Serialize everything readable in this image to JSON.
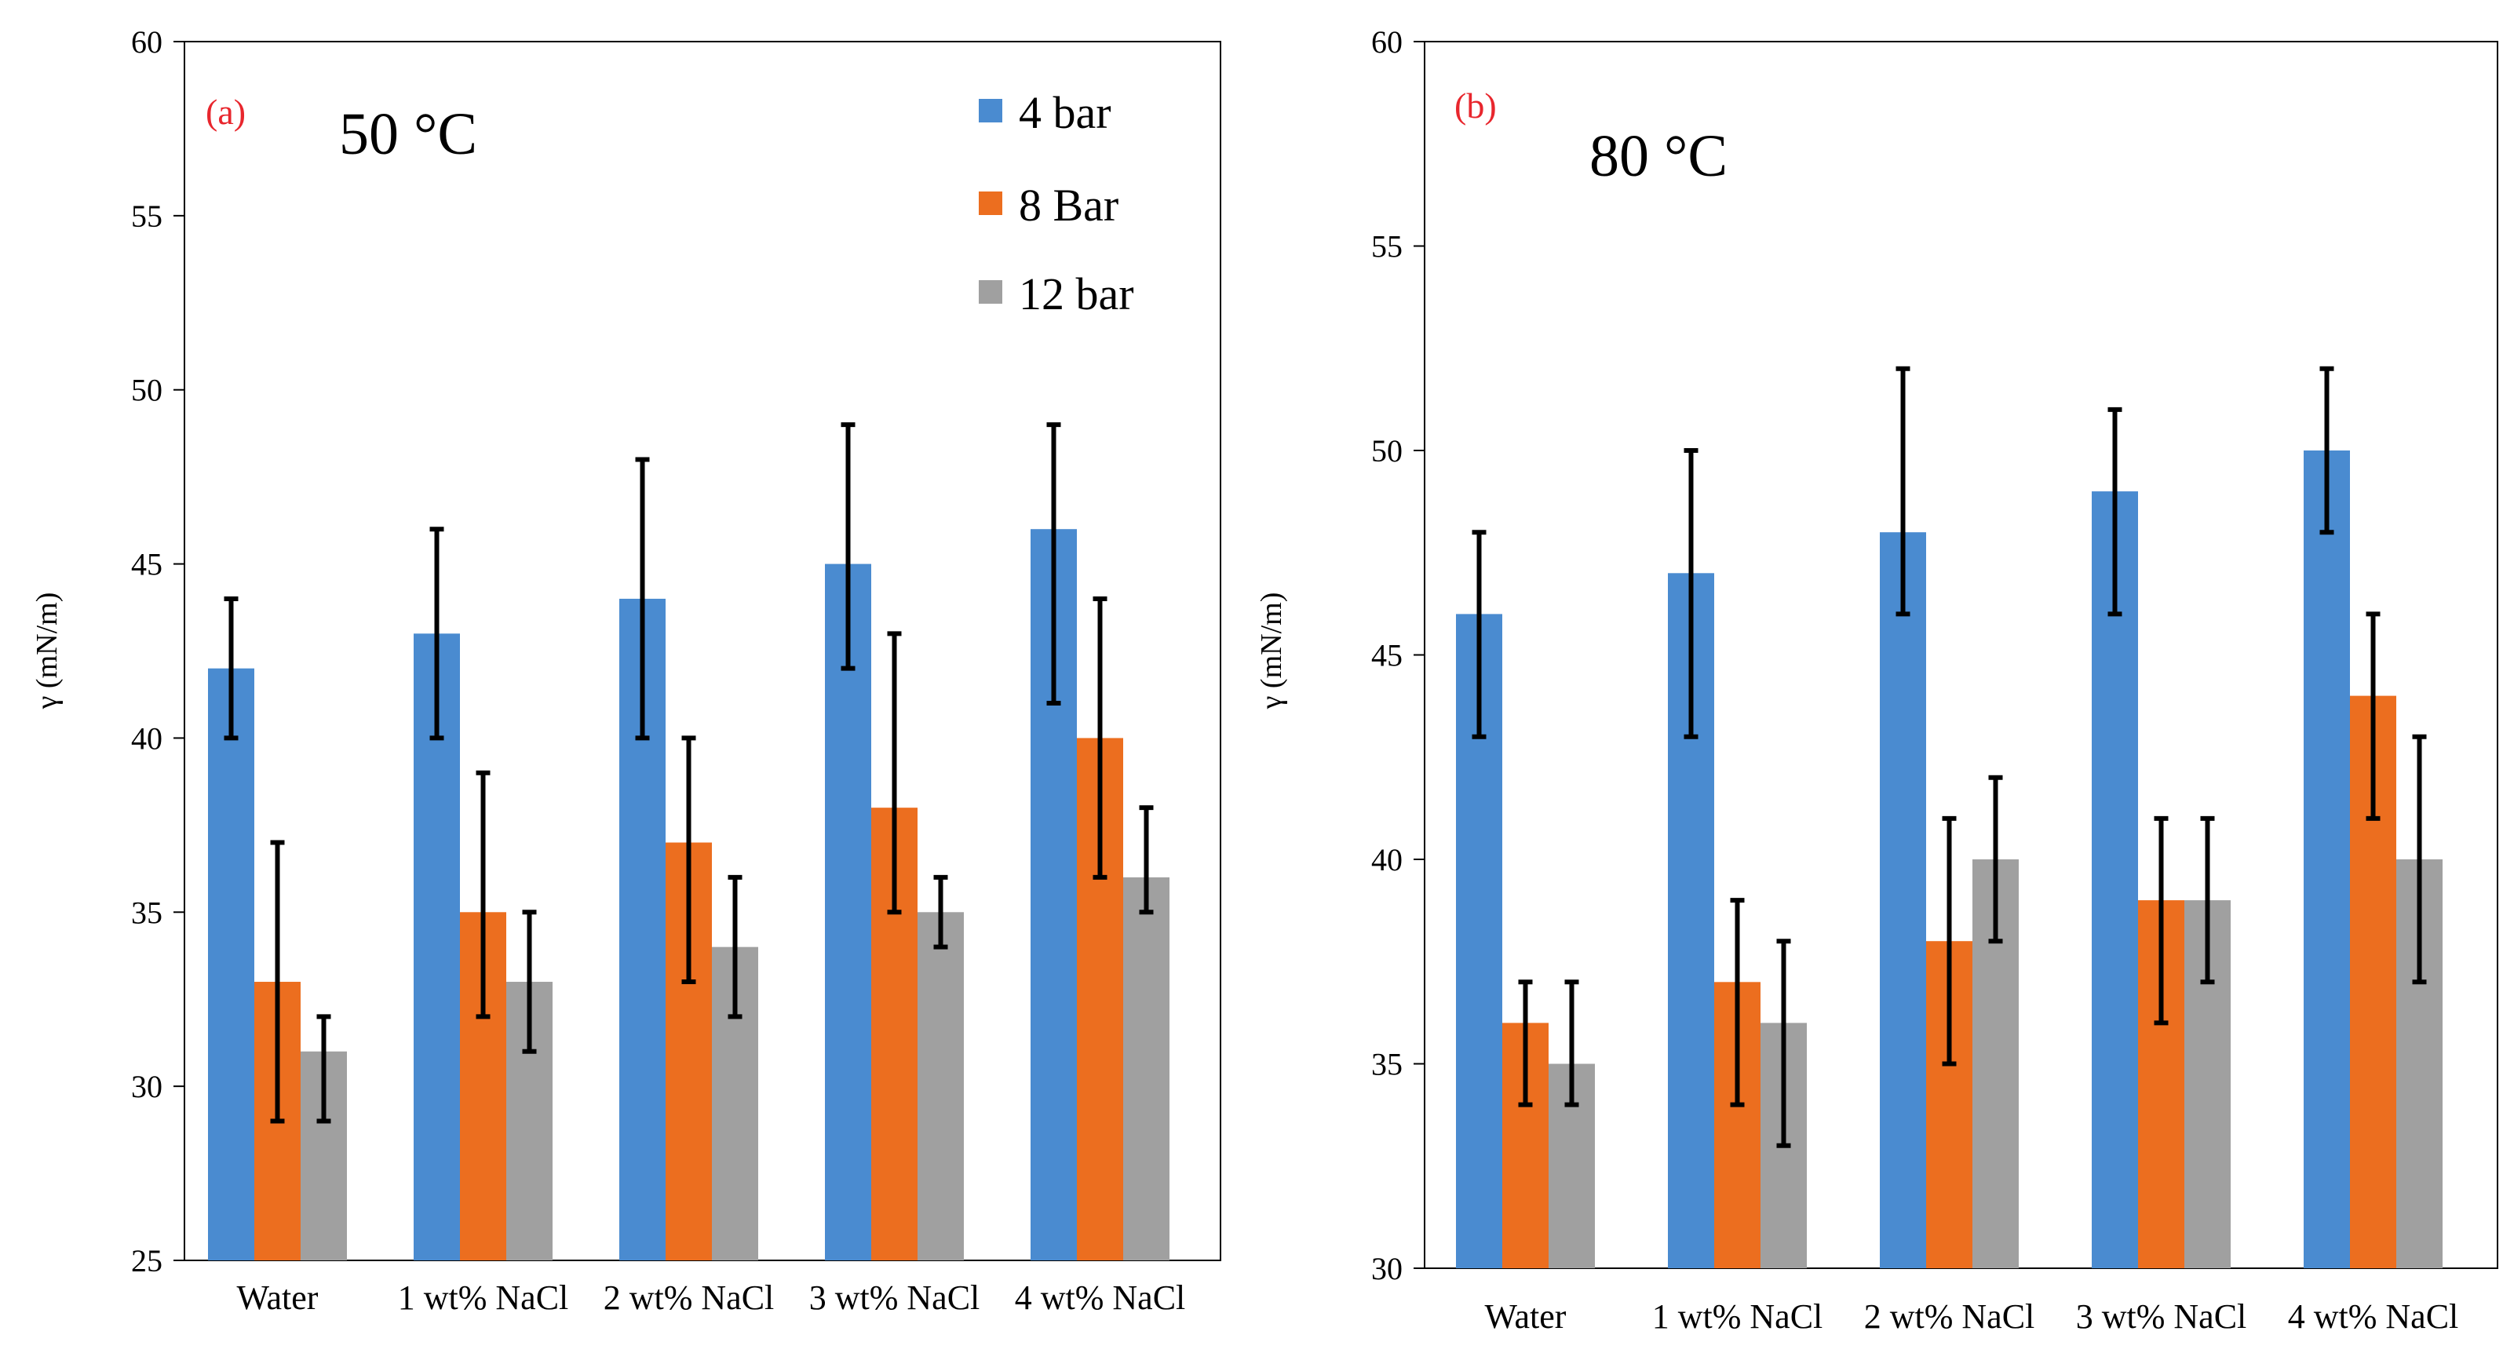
{
  "chart_data": [
    {
      "type": "bar",
      "panel_label": "(a)",
      "annotation": "50 °C",
      "ylabel": "γ (mN/m)",
      "xlabel": "",
      "ylim": [
        25,
        60
      ],
      "yticks": [
        25,
        30,
        35,
        40,
        45,
        50,
        55,
        60
      ],
      "categories": [
        "Water",
        "1 wt% NaCl",
        "2 wt% NaCl",
        "3 wt% NaCl",
        "4 wt% NaCl"
      ],
      "legend_position": "top-right",
      "series": [
        {
          "name": "4 bar",
          "color": "#4a8bd0",
          "values": [
            42,
            43,
            44,
            45,
            46
          ],
          "err_low": [
            40,
            40,
            40,
            42,
            41
          ],
          "err_high": [
            44,
            46,
            48,
            49,
            49
          ]
        },
        {
          "name": "8 Bar",
          "color": "#ec6e1f",
          "values": [
            33,
            35,
            37,
            38,
            40
          ],
          "err_low": [
            29,
            32,
            33,
            35,
            36
          ],
          "err_high": [
            37,
            39,
            40,
            43,
            44
          ]
        },
        {
          "name": "12 bar",
          "color": "#a0a0a0",
          "values": [
            31,
            33,
            34,
            35,
            36
          ],
          "err_low": [
            29,
            31,
            32,
            34,
            35
          ],
          "err_high": [
            32,
            35,
            36,
            36,
            38
          ]
        }
      ]
    },
    {
      "type": "bar",
      "panel_label": "(b)",
      "annotation": "80 °C",
      "ylabel": "γ (mN/m)",
      "xlabel": "",
      "ylim": [
        30,
        60
      ],
      "yticks": [
        30,
        35,
        40,
        45,
        50,
        55,
        60
      ],
      "categories": [
        "Water",
        "1 wt% NaCl",
        "2 wt% NaCl",
        "3 wt% NaCl",
        "4 wt% NaCl"
      ],
      "series": [
        {
          "name": "4 bar",
          "color": "#4a8bd0",
          "values": [
            46,
            47,
            48,
            49,
            50
          ],
          "err_low": [
            43,
            43,
            46,
            46,
            48
          ],
          "err_high": [
            48,
            50,
            52,
            51,
            52
          ]
        },
        {
          "name": "8 Bar",
          "color": "#ec6e1f",
          "values": [
            36,
            37,
            38,
            39,
            44
          ],
          "err_low": [
            34,
            34,
            35,
            36,
            41
          ],
          "err_high": [
            37,
            39,
            41,
            41,
            46
          ]
        },
        {
          "name": "12 bar",
          "color": "#a0a0a0",
          "values": [
            35,
            36,
            40,
            39,
            40
          ],
          "err_low": [
            34,
            33,
            38,
            37,
            37
          ],
          "err_high": [
            37,
            38,
            42,
            41,
            43
          ]
        }
      ]
    }
  ]
}
